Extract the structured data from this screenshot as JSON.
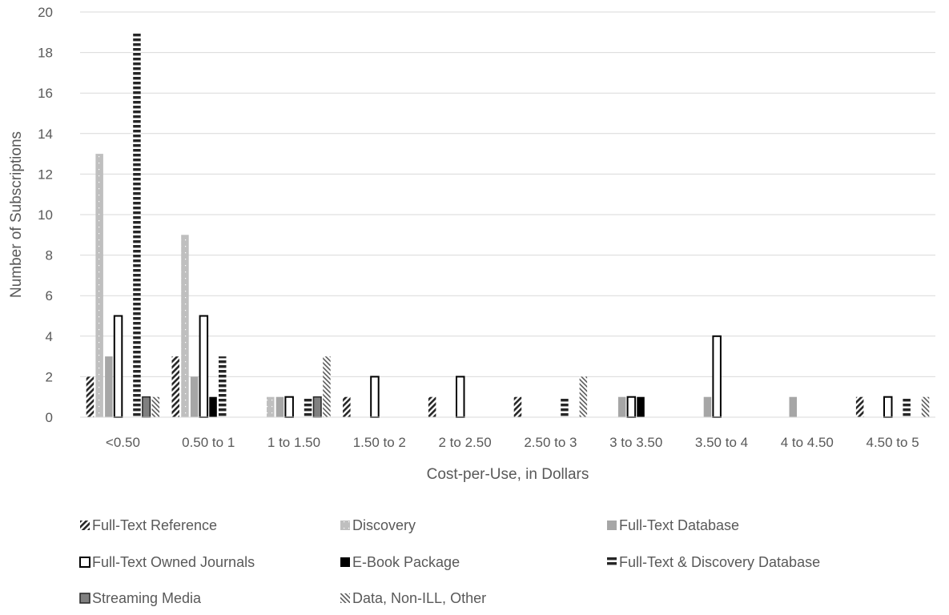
{
  "chart_data": {
    "type": "bar",
    "xlabel": "Cost-per-Use, in Dollars",
    "ylabel": "Number of Subscriptions",
    "ylim": [
      0,
      20
    ],
    "yticks": [
      "0",
      "2",
      "4",
      "6",
      "8",
      "10",
      "12",
      "14",
      "16",
      "18",
      "20"
    ],
    "grid": "horizontal",
    "legend_position": "bottom",
    "categories": [
      "<0.50",
      "0.50 to 1",
      "1 to 1.50",
      "1.50 to 2",
      "2 to 2.50",
      "2.50 to 3",
      "3 to 3.50",
      "3.50 to 4",
      "4 to 4.50",
      "4.50 to 5"
    ],
    "series": [
      {
        "name": "Full-Text Reference",
        "pattern": "diagonal-dense",
        "color": "#262626",
        "values": [
          2,
          3,
          0,
          1,
          1,
          1,
          0,
          0,
          0,
          1
        ]
      },
      {
        "name": "Discovery",
        "pattern": "light-dotted",
        "color": "#bfbfbf",
        "values": [
          13,
          9,
          1,
          0,
          0,
          0,
          0,
          0,
          0,
          0
        ]
      },
      {
        "name": "Full-Text Database",
        "pattern": "solid",
        "color": "#a6a6a6",
        "values": [
          3,
          2,
          1,
          0,
          0,
          0,
          1,
          1,
          1,
          0
        ]
      },
      {
        "name": "Full-Text Owned Journals",
        "pattern": "outline",
        "color": "#000000",
        "values": [
          5,
          5,
          1,
          2,
          2,
          0,
          1,
          4,
          0,
          1
        ]
      },
      {
        "name": "E-Book Package",
        "pattern": "solid",
        "color": "#000000",
        "values": [
          0,
          1,
          0,
          0,
          0,
          0,
          1,
          0,
          0,
          0
        ]
      },
      {
        "name": "Full-Text & Discovery Database",
        "pattern": "horizontal-stripes",
        "color": "#262626",
        "values": [
          19,
          3,
          1,
          0,
          0,
          1,
          0,
          0,
          0,
          1
        ]
      },
      {
        "name": "Streaming Media",
        "pattern": "gray-outlined",
        "color": "#808080",
        "values": [
          1,
          0,
          1,
          0,
          0,
          0,
          0,
          0,
          0,
          0
        ]
      },
      {
        "name": "Data, Non-ILL, Other",
        "pattern": "diagonal-light",
        "color": "#595959",
        "values": [
          1,
          0,
          3,
          0,
          0,
          2,
          0,
          0,
          0,
          1
        ]
      }
    ]
  }
}
